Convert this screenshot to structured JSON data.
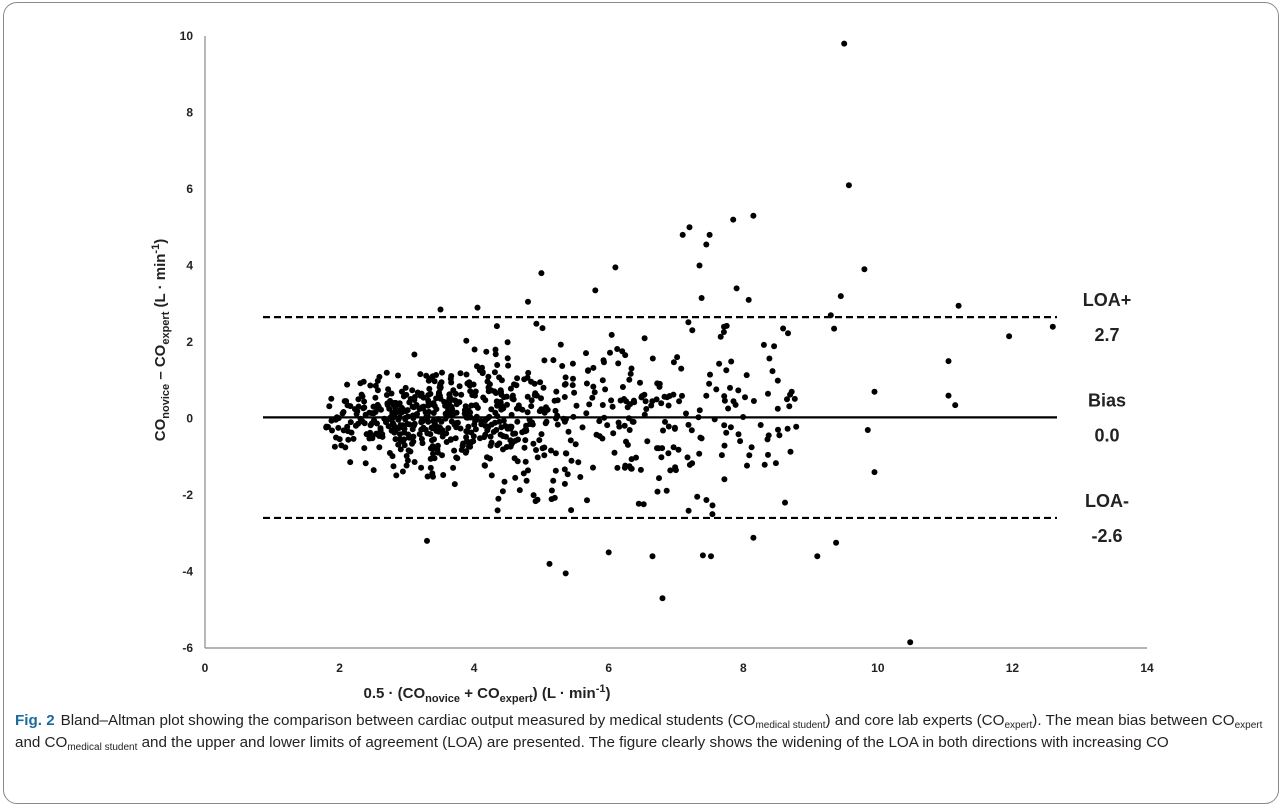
{
  "chart_data": {
    "type": "scatter",
    "xlim": [
      0,
      14
    ],
    "ylim": [
      -6,
      10
    ],
    "x_ticks": [
      "0",
      "2",
      "4",
      "6",
      "8",
      "10",
      "12",
      "14"
    ],
    "y_ticks": [
      "-6",
      "-4",
      "-2",
      "0",
      "2",
      "4",
      "6",
      "8",
      "10"
    ],
    "xlabel": {
      "pre": "0.5 · (CO",
      "sub1": "novice",
      "mid": " + CO",
      "sub2": "expert",
      "post": ") (L · min",
      "sup": "-1",
      "end": ")"
    },
    "ylabel": {
      "pre": "CO",
      "sub1": "novice",
      "mid": " – CO",
      "sub2": "expert",
      "post": " (L · min",
      "sup": "-1",
      "end": ")"
    },
    "reference_lines": [
      {
        "name": "LOA+",
        "value_label": "2.7",
        "y": 2.65,
        "style": "dashed"
      },
      {
        "name": "Bias",
        "value_label": "0.0",
        "y": 0.03,
        "style": "solid"
      },
      {
        "name": "LOA-",
        "value_label": "-2.6",
        "y": -2.6,
        "style": "dashed"
      }
    ],
    "outlier_points": [
      [
        9.5,
        9.8
      ],
      [
        9.57,
        6.1
      ],
      [
        9.45,
        3.2
      ],
      [
        9.8,
        3.9
      ],
      [
        10.48,
        -5.85
      ],
      [
        6.8,
        -4.7
      ],
      [
        5.36,
        -4.05
      ],
      [
        5.12,
        -3.8
      ],
      [
        6.0,
        -3.5
      ],
      [
        6.65,
        -3.6
      ],
      [
        7.4,
        -3.58
      ],
      [
        7.52,
        -3.6
      ],
      [
        9.1,
        -3.6
      ],
      [
        9.38,
        -3.25
      ],
      [
        3.3,
        -3.2
      ],
      [
        8.15,
        -3.12
      ],
      [
        7.2,
        5.0
      ],
      [
        7.1,
        4.8
      ],
      [
        7.5,
        4.8
      ],
      [
        7.45,
        4.55
      ],
      [
        7.35,
        4.0
      ],
      [
        6.1,
        3.95
      ],
      [
        7.85,
        5.2
      ],
      [
        8.15,
        5.3
      ],
      [
        11.2,
        2.95
      ],
      [
        11.05,
        1.5
      ],
      [
        11.15,
        0.35
      ],
      [
        11.05,
        0.6
      ],
      [
        11.95,
        2.15
      ],
      [
        12.6,
        2.4
      ],
      [
        9.95,
        0.7
      ],
      [
        9.95,
        -1.4
      ],
      [
        9.85,
        -0.3
      ],
      [
        8.62,
        -2.2
      ],
      [
        5.0,
        3.8
      ],
      [
        4.8,
        3.05
      ],
      [
        5.8,
        3.35
      ],
      [
        7.9,
        3.4
      ],
      [
        8.08,
        3.1
      ],
      [
        7.38,
        3.15
      ],
      [
        3.5,
        2.85
      ],
      [
        4.05,
        2.9
      ],
      [
        9.35,
        2.35
      ],
      [
        9.3,
        2.7
      ]
    ],
    "point_color": "#000000"
  },
  "caption": {
    "fig_label": "Fig. 2",
    "t1": "Bland–Altman plot showing the comparison between cardiac output measured by medical students (CO",
    "s1": "medical student",
    "t2": ") and core lab experts (CO",
    "s2": "expert",
    "t3": "). The mean bias between CO",
    "s3": "expert",
    "t4": " and CO",
    "s4": "medical student",
    "t5": " and the upper and lower limits of agreement (LOA) are presented. The figure clearly shows the widening of the LOA in both directions with increasing CO"
  }
}
